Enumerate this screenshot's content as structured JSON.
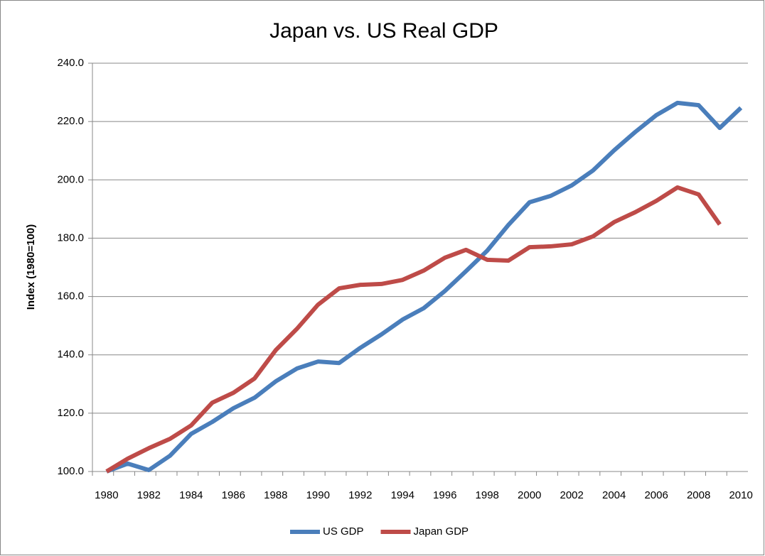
{
  "chart_data": {
    "type": "line",
    "title": "Japan vs. US Real GDP",
    "y_label": "Index (1980=100)",
    "categories": [
      "1980",
      null,
      "1982",
      null,
      "1984",
      null,
      "1986",
      null,
      "1988",
      null,
      "1990",
      null,
      "1992",
      null,
      "1994",
      null,
      "1996",
      null,
      "1998",
      null,
      "2000",
      null,
      "2002",
      null,
      "2004",
      null,
      "2006",
      null,
      "2008",
      null,
      "2010"
    ],
    "series": [
      {
        "name": "US GDP",
        "color": "#4a7ebb",
        "values": [
          100,
          102.7,
          100.5,
          105.4,
          112.9,
          117,
          121.7,
          125.3,
          130.9,
          135.3,
          137.7,
          137.2,
          142.4,
          147,
          152.1,
          156,
          161.9,
          168.7,
          175.7,
          184.5,
          192.3,
          194.5,
          198.1,
          203.2,
          210.1,
          216.4,
          222.2,
          226.4,
          225.6,
          217.8,
          224.7
        ]
      },
      {
        "name": "Japan GDP",
        "color": "#be4b48",
        "values": [
          100,
          104.4,
          108,
          111.2,
          115.8,
          123.6,
          127,
          131.9,
          141.6,
          148.9,
          157.2,
          162.8,
          164,
          164.3,
          165.7,
          168.9,
          173.3,
          176,
          172.6,
          172.3,
          176.9,
          177.2,
          177.9,
          180.6,
          185.5,
          188.9,
          192.8,
          197.4,
          195,
          184.7,
          null
        ]
      }
    ],
    "ylim": [
      100,
      240
    ],
    "yticks": [
      {
        "value": 100,
        "label": "100.0"
      },
      {
        "value": 120,
        "label": "120.0"
      },
      {
        "value": 140,
        "label": "140.0"
      },
      {
        "value": 160,
        "label": "160.0"
      },
      {
        "value": 180,
        "label": "180.0"
      },
      {
        "value": 200,
        "label": "200.0"
      },
      {
        "value": 220,
        "label": "220.0"
      },
      {
        "value": 240,
        "label": "240.0"
      }
    ],
    "grid": true,
    "legend": "bottom"
  }
}
